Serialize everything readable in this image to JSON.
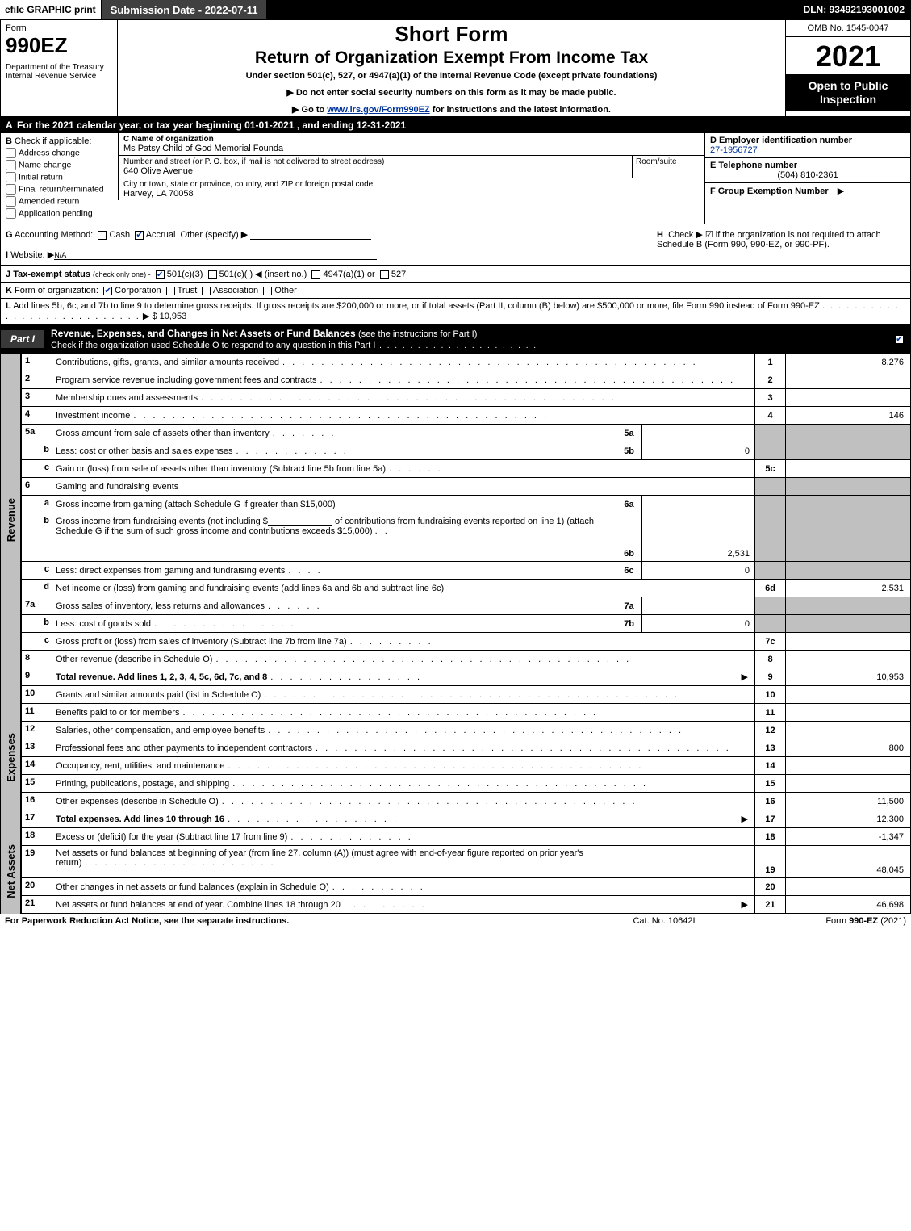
{
  "top": {
    "efile": "efile GRAPHIC print",
    "submit": "Submission Date - 2022-07-11",
    "dln": "DLN: 93492193001002"
  },
  "header": {
    "form_label": "Form",
    "form_num": "990EZ",
    "dept": "Department of the Treasury\nInternal Revenue Service",
    "short": "Short Form",
    "return": "Return of Organization Exempt From Income Tax",
    "under": "Under section 501(c), 527, or 4947(a)(1) of the Internal Revenue Code (except private foundations)",
    "note1": "▶ Do not enter social security numbers on this form as it may be made public.",
    "note2_pre": "▶ Go to ",
    "note2_link": "www.irs.gov/Form990EZ",
    "note2_post": " for instructions and the latest information.",
    "omb": "OMB No. 1545-0047",
    "year": "2021",
    "open": "Open to Public Inspection"
  },
  "rowA": "For the 2021 calendar year, or tax year beginning 01-01-2021 , and ending 12-31-2021",
  "B": {
    "label": "Check if applicable:",
    "opts": [
      "Address change",
      "Name change",
      "Initial return",
      "Final return/terminated",
      "Amended return",
      "Application pending"
    ]
  },
  "C": {
    "name_lbl": "C Name of organization",
    "name": "Ms Patsy Child of God Memorial Founda",
    "addr_lbl": "Number and street (or P. O. box, if mail is not delivered to street address)",
    "room_lbl": "Room/suite",
    "addr": "640 Olive Avenue",
    "city_lbl": "City or town, state or province, country, and ZIP or foreign postal code",
    "city": "Harvey, LA  70058"
  },
  "D": {
    "ein_lbl": "D Employer identification number",
    "ein": "27-1956727",
    "tel_lbl": "E Telephone number",
    "tel": "(504) 810-2361",
    "grp_lbl": "F Group Exemption Number",
    "grp_arrow": "▶"
  },
  "G": {
    "label": "Accounting Method:",
    "cash": "Cash",
    "accrual": "Accrual",
    "other": "Other (specify) ▶"
  },
  "H": "Check ▶  ☑  if the organization is not required to attach Schedule B (Form 990, 990-EZ, or 990-PF).",
  "I": {
    "label": "Website: ▶",
    "val": "N/A"
  },
  "J": {
    "pre": "Tax-exempt status",
    "sub": "(check only one) -",
    "a": "501(c)(3)",
    "b": "501(c)(  ) ◀ (insert no.)",
    "c": "4947(a)(1) or",
    "d": "527"
  },
  "K": {
    "label": "Form of organization:",
    "opts": [
      "Corporation",
      "Trust",
      "Association",
      "Other"
    ]
  },
  "L": {
    "text": "Add lines 5b, 6c, and 7b to line 9 to determine gross receipts. If gross receipts are $200,000 or more, or if total assets (Part II, column (B) below) are $500,000 or more, file Form 990 instead of Form 990-EZ",
    "amt": "$ 10,953"
  },
  "part1": {
    "tab": "Part I",
    "title": "Revenue, Expenses, and Changes in Net Assets or Fund Balances",
    "sub": "(see the instructions for Part I)",
    "check_line": "Check if the organization used Schedule O to respond to any question in this Part I"
  },
  "lines": {
    "l1": {
      "n": "1",
      "d": "Contributions, gifts, grants, and similar amounts received",
      "box": "1",
      "val": "8,276"
    },
    "l2": {
      "n": "2",
      "d": "Program service revenue including government fees and contracts",
      "box": "2",
      "val": ""
    },
    "l3": {
      "n": "3",
      "d": "Membership dues and assessments",
      "box": "3",
      "val": ""
    },
    "l4": {
      "n": "4",
      "d": "Investment income",
      "box": "4",
      "val": "146"
    },
    "l5a": {
      "n": "5a",
      "d": "Gross amount from sale of assets other than inventory",
      "sub": "5a",
      "subval": ""
    },
    "l5b": {
      "n": "b",
      "d": "Less: cost or other basis and sales expenses",
      "sub": "5b",
      "subval": "0"
    },
    "l5c": {
      "n": "c",
      "d": "Gain or (loss) from sale of assets other than inventory (Subtract line 5b from line 5a)",
      "box": "5c",
      "val": ""
    },
    "l6": {
      "n": "6",
      "d": "Gaming and fundraising events"
    },
    "l6a": {
      "n": "a",
      "d": "Gross income from gaming (attach Schedule G if greater than $15,000)",
      "sub": "6a",
      "subval": ""
    },
    "l6b": {
      "n": "b",
      "d1": "Gross income from fundraising events (not including $",
      "d2": "of contributions from fundraising events reported on line 1) (attach Schedule G if the sum of such gross income and contributions exceeds $15,000)",
      "sub": "6b",
      "subval": "2,531"
    },
    "l6c": {
      "n": "c",
      "d": "Less: direct expenses from gaming and fundraising events",
      "sub": "6c",
      "subval": "0"
    },
    "l6d": {
      "n": "d",
      "d": "Net income or (loss) from gaming and fundraising events (add lines 6a and 6b and subtract line 6c)",
      "box": "6d",
      "val": "2,531"
    },
    "l7a": {
      "n": "7a",
      "d": "Gross sales of inventory, less returns and allowances",
      "sub": "7a",
      "subval": ""
    },
    "l7b": {
      "n": "b",
      "d": "Less: cost of goods sold",
      "sub": "7b",
      "subval": "0"
    },
    "l7c": {
      "n": "c",
      "d": "Gross profit or (loss) from sales of inventory (Subtract line 7b from line 7a)",
      "box": "7c",
      "val": ""
    },
    "l8": {
      "n": "8",
      "d": "Other revenue (describe in Schedule O)",
      "box": "8",
      "val": ""
    },
    "l9": {
      "n": "9",
      "d": "Total revenue. Add lines 1, 2, 3, 4, 5c, 6d, 7c, and 8",
      "arrow": "▶",
      "box": "9",
      "val": "10,953"
    },
    "l10": {
      "n": "10",
      "d": "Grants and similar amounts paid (list in Schedule O)",
      "box": "10",
      "val": ""
    },
    "l11": {
      "n": "11",
      "d": "Benefits paid to or for members",
      "box": "11",
      "val": ""
    },
    "l12": {
      "n": "12",
      "d": "Salaries, other compensation, and employee benefits",
      "box": "12",
      "val": ""
    },
    "l13": {
      "n": "13",
      "d": "Professional fees and other payments to independent contractors",
      "box": "13",
      "val": "800"
    },
    "l14": {
      "n": "14",
      "d": "Occupancy, rent, utilities, and maintenance",
      "box": "14",
      "val": ""
    },
    "l15": {
      "n": "15",
      "d": "Printing, publications, postage, and shipping",
      "box": "15",
      "val": ""
    },
    "l16": {
      "n": "16",
      "d": "Other expenses (describe in Schedule O)",
      "box": "16",
      "val": "11,500"
    },
    "l17": {
      "n": "17",
      "d": "Total expenses. Add lines 10 through 16",
      "arrow": "▶",
      "box": "17",
      "val": "12,300"
    },
    "l18": {
      "n": "18",
      "d": "Excess or (deficit) for the year (Subtract line 17 from line 9)",
      "box": "18",
      "val": "-1,347"
    },
    "l19": {
      "n": "19",
      "d": "Net assets or fund balances at beginning of year (from line 27, column (A)) (must agree with end-of-year figure reported on prior year's return)",
      "box": "19",
      "val": "48,045"
    },
    "l20": {
      "n": "20",
      "d": "Other changes in net assets or fund balances (explain in Schedule O)",
      "box": "20",
      "val": ""
    },
    "l21": {
      "n": "21",
      "d": "Net assets or fund balances at end of year. Combine lines 18 through 20",
      "arrow": "▶",
      "box": "21",
      "val": "46,698"
    }
  },
  "sections": {
    "revenue": "Revenue",
    "expenses": "Expenses",
    "netassets": "Net Assets"
  },
  "footer": {
    "l": "For Paperwork Reduction Act Notice, see the separate instructions.",
    "c": "Cat. No. 10642I",
    "r_pre": "Form ",
    "r_bold": "990-EZ",
    "r_post": " (2021)"
  },
  "dots": ".  .  .  .  .  .  .  .  .  .  .  .  .  .  .  .  .  .  .  .  .  .  .  .  .  .  .  .  .  .  .  .  .  .  .  .  .  .  .  .  .  .  ."
}
